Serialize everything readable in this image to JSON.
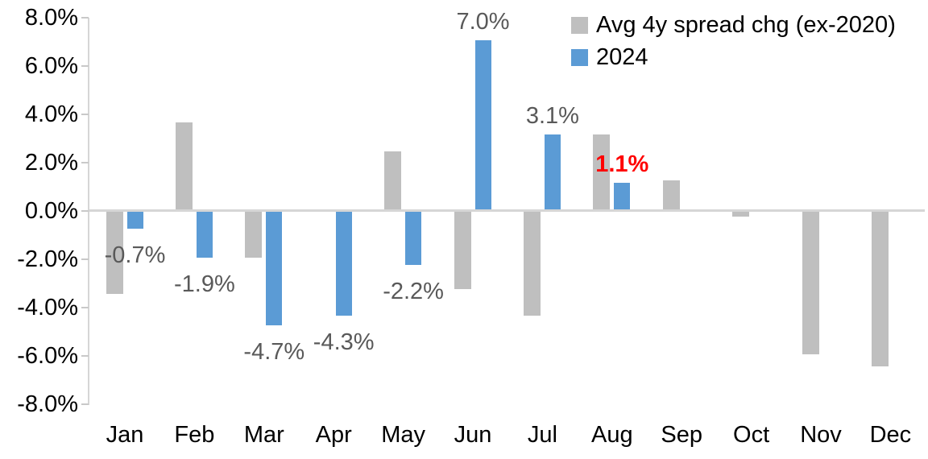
{
  "chart_data": {
    "type": "bar",
    "title": "",
    "categories": [
      "Jan",
      "Feb",
      "Mar",
      "Apr",
      "May",
      "Jun",
      "Jul",
      "Aug",
      "Sep",
      "Oct",
      "Nov",
      "Dec"
    ],
    "series": [
      {
        "name": "Avg 4y spread chg (ex-2020)",
        "color": "#BFBFBF",
        "values": [
          -3.4,
          3.6,
          -1.9,
          0,
          2.4,
          -3.2,
          -4.3,
          3.1,
          1.2,
          -0.2,
          -5.9,
          -6.4
        ]
      },
      {
        "name": "2024",
        "color": "#5B9BD5",
        "values": [
          -0.7,
          -1.9,
          -4.7,
          -4.3,
          -2.2,
          7.0,
          3.1,
          1.1,
          null,
          null,
          null,
          null
        ]
      }
    ],
    "data_labels": [
      {
        "category": "Jan",
        "series": "2024",
        "text": "-0.7%",
        "color": "#595959",
        "bold": false
      },
      {
        "category": "Feb",
        "series": "2024",
        "text": "-1.9%",
        "color": "#595959",
        "bold": false
      },
      {
        "category": "Mar",
        "series": "2024",
        "text": "-4.7%",
        "color": "#595959",
        "bold": false
      },
      {
        "category": "Apr",
        "series": "2024",
        "text": "-4.3%",
        "color": "#595959",
        "bold": false
      },
      {
        "category": "May",
        "series": "2024",
        "text": "-2.2%",
        "color": "#595959",
        "bold": false
      },
      {
        "category": "Jun",
        "series": "2024",
        "text": "7.0%",
        "color": "#595959",
        "bold": false
      },
      {
        "category": "Jul",
        "series": "2024",
        "text": "3.1%",
        "color": "#595959",
        "bold": false
      },
      {
        "category": "Aug",
        "series": "2024",
        "text": "1.1%",
        "color": "#FF0000",
        "bold": true
      }
    ],
    "y_axis": {
      "min": -8,
      "max": 8,
      "step": 2,
      "tick_labels": [
        "8.0%",
        "6.0%",
        "4.0%",
        "2.0%",
        "0.0%",
        "-2.0%",
        "-4.0%",
        "-6.0%",
        "-8.0%"
      ]
    },
    "x_axis": {
      "label": ""
    },
    "legend": {
      "position": "top-right"
    },
    "grid": "zero-line-only"
  },
  "colors": {
    "background": "#FFFFFF",
    "axis_line": "#D6D6D6",
    "tick": "#C9C9C9",
    "label_gray": "#595959",
    "label_red": "#FF0000",
    "axis_text": "#000000"
  }
}
